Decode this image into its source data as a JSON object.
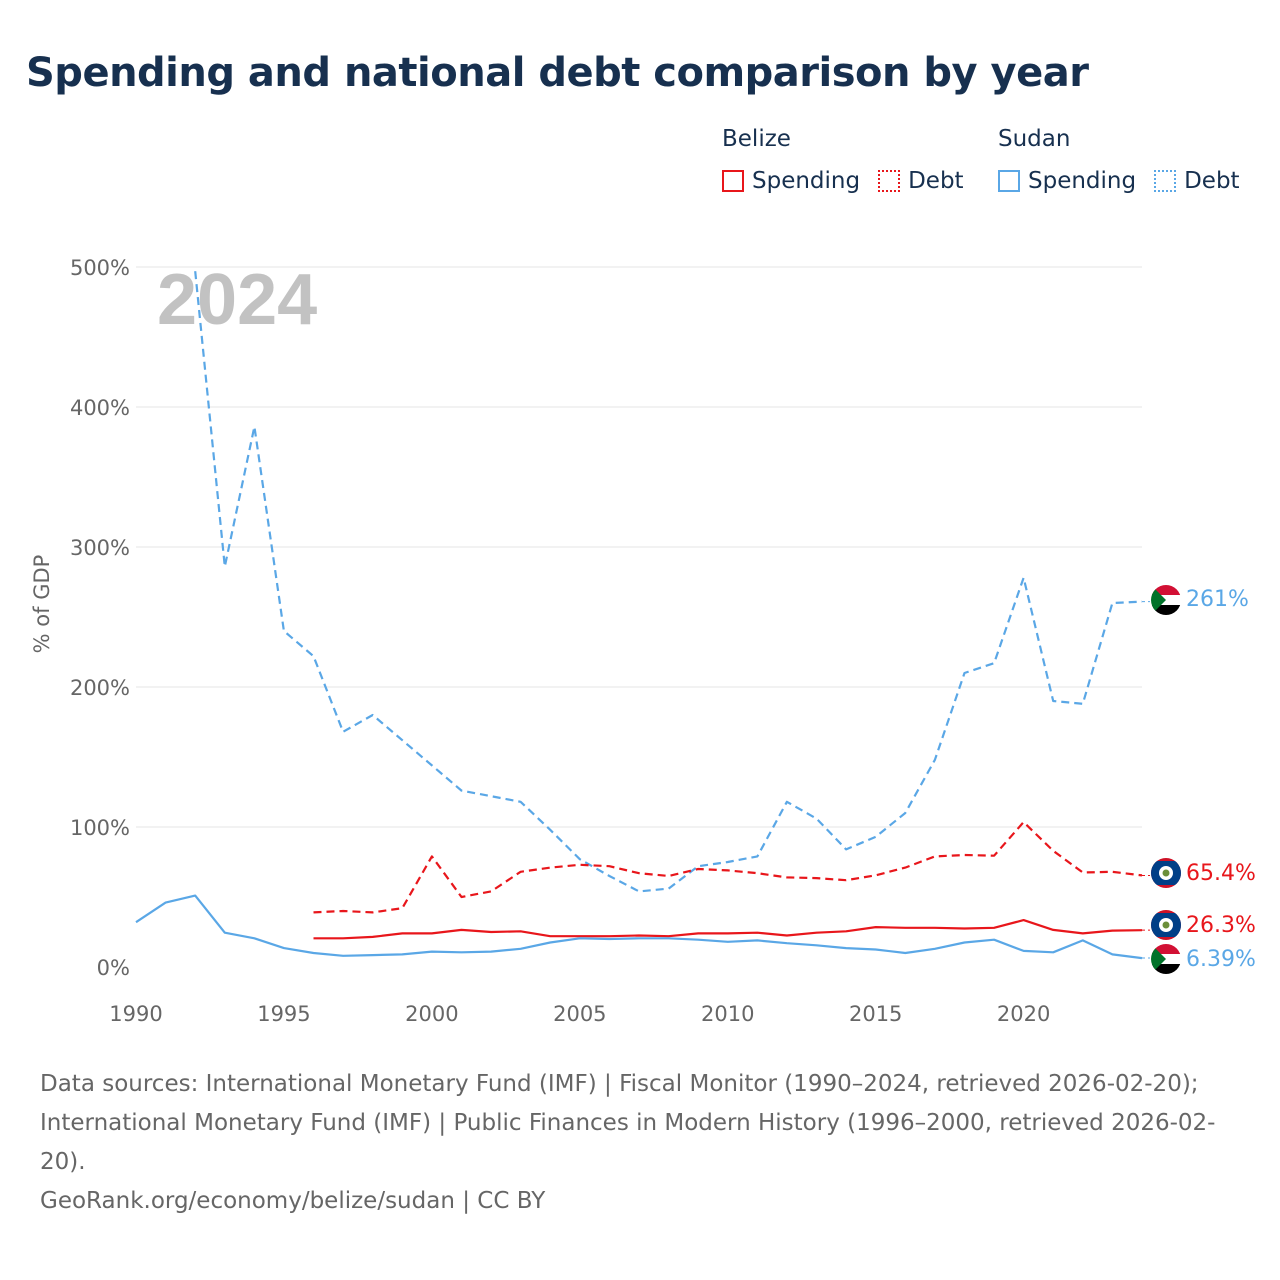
{
  "title": "Spending and national debt comparison by year",
  "legend": {
    "groups": [
      {
        "name": "Belize",
        "color": "#e8161b",
        "entries": [
          {
            "label": "Spending",
            "style": "solid"
          },
          {
            "label": "Debt",
            "style": "dotted"
          }
        ]
      },
      {
        "name": "Sudan",
        "color": "#5aa7e6",
        "entries": [
          {
            "label": "Spending",
            "style": "solid"
          },
          {
            "label": "Debt",
            "style": "dotted"
          }
        ]
      }
    ]
  },
  "chart_data": {
    "type": "line",
    "title": "Spending and national debt comparison by year",
    "ylabel": "% of GDP",
    "xlabel": "",
    "year_label": "2024",
    "xlim": [
      1990,
      2024
    ],
    "ylim": [
      0,
      500
    ],
    "x_ticks": [
      1990,
      1995,
      2000,
      2005,
      2010,
      2015,
      2020
    ],
    "y_ticks": [
      0,
      100,
      200,
      300,
      400,
      500
    ],
    "y_tick_labels": [
      "0%",
      "100%",
      "200%",
      "300%",
      "400%",
      "500%"
    ],
    "grid": true,
    "series": [
      {
        "name": "Sudan Debt",
        "country": "Sudan",
        "metric": "Debt",
        "color": "#5aa7e6",
        "dash": "dashed",
        "end_label": "261%",
        "x": [
          1992,
          1993,
          1994,
          1995,
          1996,
          1997,
          1998,
          1999,
          2000,
          2001,
          2002,
          2003,
          2004,
          2005,
          2006,
          2007,
          2008,
          2009,
          2010,
          2011,
          2012,
          2013,
          2014,
          2015,
          2016,
          2017,
          2018,
          2019,
          2020,
          2021,
          2022,
          2023,
          2024
        ],
        "y": [
          497,
          286,
          386,
          240,
          222,
          168,
          180,
          162,
          144,
          126,
          122,
          118,
          98,
          77,
          65,
          54,
          56,
          72,
          75,
          79,
          118,
          106,
          84,
          93,
          110,
          148,
          210,
          217,
          278,
          190,
          188,
          260,
          261
        ]
      },
      {
        "name": "Belize Debt",
        "country": "Belize",
        "metric": "Debt",
        "color": "#e8161b",
        "dash": "dashed",
        "end_label": "65.4%",
        "x": [
          1996,
          1997,
          1998,
          1999,
          2000,
          2001,
          2002,
          2003,
          2004,
          2005,
          2006,
          2007,
          2008,
          2009,
          2010,
          2011,
          2012,
          2013,
          2014,
          2015,
          2016,
          2017,
          2018,
          2019,
          2020,
          2021,
          2022,
          2023,
          2024
        ],
        "y": [
          39,
          40,
          39,
          42,
          79,
          50,
          54,
          68,
          71,
          73,
          72,
          67,
          65,
          70,
          69,
          67,
          64,
          63.5,
          62,
          65.5,
          71,
          79,
          80,
          79.5,
          103.5,
          83,
          67.5,
          68,
          65.4
        ]
      },
      {
        "name": "Belize Spending",
        "country": "Belize",
        "metric": "Spending",
        "color": "#e8161b",
        "dash": "solid",
        "end_label": "26.3%",
        "x": [
          1996,
          1997,
          1998,
          1999,
          2000,
          2001,
          2002,
          2003,
          2004,
          2005,
          2006,
          2007,
          2008,
          2009,
          2010,
          2011,
          2012,
          2013,
          2014,
          2015,
          2016,
          2017,
          2018,
          2019,
          2020,
          2021,
          2022,
          2023,
          2024
        ],
        "y": [
          20.5,
          20.5,
          21.5,
          24,
          24,
          26.5,
          25,
          25.5,
          22,
          22,
          22,
          22.5,
          22,
          24,
          24,
          24.5,
          22.5,
          24.5,
          25.5,
          28.5,
          28,
          28,
          27.5,
          28,
          33.5,
          26.5,
          24,
          26,
          26.3
        ]
      },
      {
        "name": "Sudan Spending",
        "country": "Sudan",
        "metric": "Spending",
        "color": "#5aa7e6",
        "dash": "solid",
        "end_label": "6.39%",
        "x": [
          1990,
          1991,
          1992,
          1993,
          1994,
          1995,
          1996,
          1997,
          1998,
          1999,
          2000,
          2001,
          2002,
          2003,
          2004,
          2005,
          2006,
          2007,
          2008,
          2009,
          2010,
          2011,
          2012,
          2013,
          2014,
          2015,
          2016,
          2017,
          2018,
          2019,
          2020,
          2021,
          2022,
          2023,
          2024
        ],
        "y": [
          32,
          46,
          51,
          24.5,
          20.5,
          13.5,
          10,
          8,
          8.5,
          9,
          11,
          10.5,
          11,
          13,
          17.5,
          20.5,
          20,
          20.5,
          20.5,
          19.5,
          18,
          19,
          17,
          15.5,
          13.5,
          12.5,
          10,
          13,
          17.5,
          19.5,
          11.5,
          10.5,
          19,
          9,
          6.39
        ]
      }
    ]
  },
  "source": {
    "line1": "Data sources: International Monetary Fund (IMF) | Fiscal Monitor (1990–2024, retrieved 2026-02-20); International Monetary Fund (IMF) | Public Finances in Modern History (1996–2000, retrieved 2026-02-20).",
    "line2": "GeoRank.org/economy/belize/sudan | CC BY"
  }
}
